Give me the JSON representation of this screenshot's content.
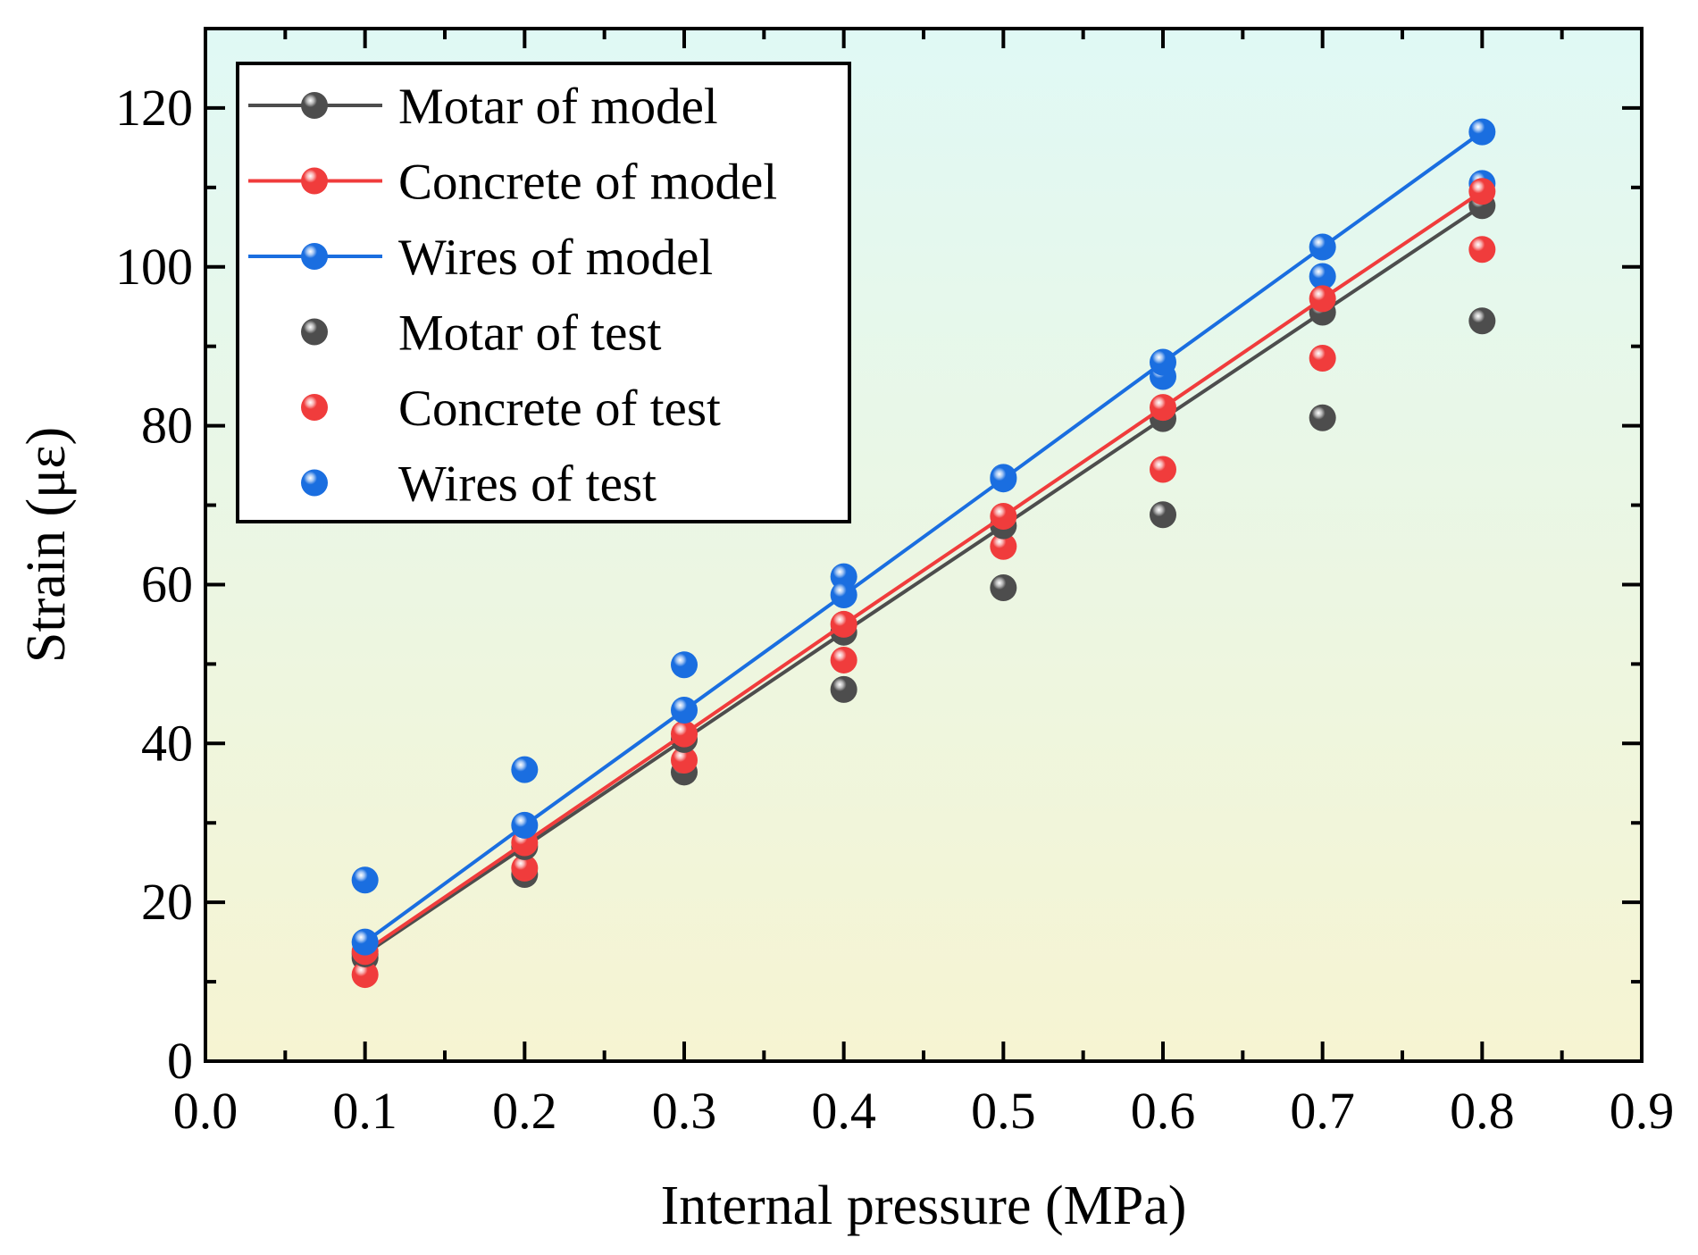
{
  "chart_data": {
    "type": "line",
    "xlabel": "Internal pressure (MPa)",
    "ylabel": "Strain (με)",
    "xlim": [
      0.0,
      0.9
    ],
    "ylim": [
      0,
      130
    ],
    "xticks": [
      "0.0",
      "0.1",
      "0.2",
      "0.3",
      "0.4",
      "0.5",
      "0.6",
      "0.7",
      "0.8",
      "0.9"
    ],
    "yticks": [
      "0",
      "20",
      "40",
      "60",
      "80",
      "100",
      "120"
    ],
    "legend_position": "top-left",
    "grid": false,
    "x": [
      0.1,
      0.2,
      0.3,
      0.4,
      0.5,
      0.6,
      0.7,
      0.8
    ],
    "series": [
      {
        "name": "Motar of model",
        "kind": "line+marker",
        "color": "#4d4d4d",
        "values": [
          13.5,
          27.0,
          40.5,
          54.0,
          67.4,
          80.9,
          94.3,
          107.7
        ]
      },
      {
        "name": "Concrete of model",
        "kind": "line+marker",
        "color": "#f03c3c",
        "values": [
          13.8,
          27.5,
          41.2,
          55.0,
          68.6,
          82.3,
          96.0,
          109.5
        ]
      },
      {
        "name": "Wires of model",
        "kind": "line+marker",
        "color": "#1a6ee0",
        "values": [
          15.0,
          29.7,
          44.2,
          58.7,
          73.3,
          88.0,
          102.5,
          117.0
        ]
      },
      {
        "name": "Motar of test",
        "kind": "marker",
        "color": "#4d4d4d",
        "values": [
          13.0,
          23.5,
          36.4,
          46.8,
          59.6,
          68.8,
          81.0,
          93.2
        ]
      },
      {
        "name": "Concrete of test",
        "kind": "marker",
        "color": "#f03c3c",
        "values": [
          10.9,
          24.3,
          37.9,
          50.5,
          64.8,
          74.5,
          88.5,
          102.2
        ]
      },
      {
        "name": "Wires of test",
        "kind": "marker",
        "color": "#1a6ee0",
        "values": [
          22.8,
          36.7,
          49.9,
          61.0,
          73.5,
          86.2,
          98.8,
          110.5
        ]
      }
    ]
  }
}
